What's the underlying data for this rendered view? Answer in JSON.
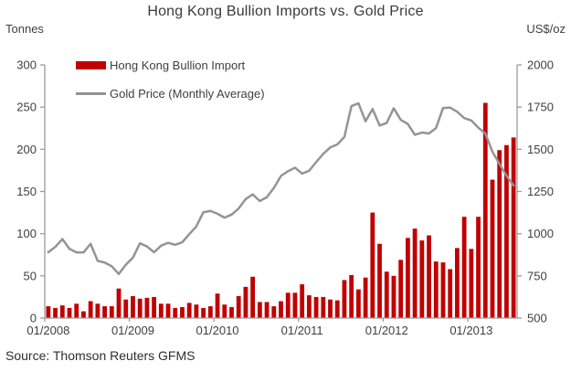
{
  "title": "Hong Kong Bullion Imports vs. Gold Price",
  "source": "Source: Thomson Reuters GFMS",
  "left_axis_unit": "Tonnes",
  "right_axis_unit": "US$/oz",
  "legend": {
    "bar_label": "Hong Kong Bullion Import",
    "line_label": "Gold Price (Monthly Average)"
  },
  "colors": {
    "bar": "#c00000",
    "line": "#949494",
    "axis": "#9c9c9c",
    "text": "#3f3f3f"
  },
  "chart_data": {
    "type": "bar",
    "subtype": "combo bar+line, dual axis",
    "title": "Hong Kong Bullion Imports vs. Gold Price",
    "gridlines": false,
    "legend_position": "top-left inside plot",
    "months": [
      "01/2008",
      "02/2008",
      "03/2008",
      "04/2008",
      "05/2008",
      "06/2008",
      "07/2008",
      "08/2008",
      "09/2008",
      "10/2008",
      "11/2008",
      "12/2008",
      "01/2009",
      "02/2009",
      "03/2009",
      "04/2009",
      "05/2009",
      "06/2009",
      "07/2009",
      "08/2009",
      "09/2009",
      "10/2009",
      "11/2009",
      "12/2009",
      "01/2010",
      "02/2010",
      "03/2010",
      "04/2010",
      "05/2010",
      "06/2010",
      "07/2010",
      "08/2010",
      "09/2010",
      "10/2010",
      "11/2010",
      "12/2010",
      "01/2011",
      "02/2011",
      "03/2011",
      "04/2011",
      "05/2011",
      "06/2011",
      "07/2011",
      "08/2011",
      "09/2011",
      "10/2011",
      "11/2011",
      "12/2011",
      "01/2012",
      "02/2012",
      "03/2012",
      "04/2012",
      "05/2012",
      "06/2012",
      "07/2012",
      "08/2012",
      "09/2012",
      "10/2012",
      "11/2012",
      "12/2012",
      "01/2013",
      "02/2013",
      "03/2013",
      "04/2013",
      "05/2013",
      "06/2013",
      "07/2013"
    ],
    "series": [
      {
        "name": "Hong Kong Bullion Import",
        "type": "bar",
        "axis": "left",
        "unit": "tonnes",
        "color": "#c00000",
        "values": [
          14,
          12,
          15,
          12,
          17,
          8,
          20,
          17,
          14,
          14,
          35,
          22,
          26,
          23,
          24,
          25,
          17,
          17,
          12,
          13,
          18,
          16,
          12,
          14,
          29,
          16,
          13,
          26,
          37,
          49,
          19,
          19,
          14,
          20,
          30,
          30,
          40,
          27,
          25,
          25,
          22,
          21,
          45,
          51,
          34,
          48,
          125,
          88,
          55,
          50,
          69,
          95,
          106,
          92,
          98,
          67,
          66,
          58,
          83,
          120,
          82,
          120,
          255,
          164,
          199,
          205,
          214
        ]
      },
      {
        "name": "Gold Price (Monthly Average)",
        "type": "line",
        "axis": "right",
        "unit": "US$/oz",
        "color": "#949494",
        "values": [
          890,
          922,
          968,
          910,
          889,
          889,
          940,
          839,
          829,
          807,
          761,
          816,
          858,
          943,
          924,
          890,
          929,
          946,
          934,
          949,
          997,
          1043,
          1127,
          1135,
          1118,
          1095,
          1113,
          1149,
          1205,
          1233,
          1193,
          1216,
          1271,
          1342,
          1370,
          1391,
          1356,
          1373,
          1424,
          1473,
          1511,
          1529,
          1573,
          1756,
          1772,
          1666,
          1739,
          1641,
          1656,
          1743,
          1674,
          1650,
          1586,
          1599,
          1594,
          1626,
          1745,
          1747,
          1722,
          1685,
          1671,
          1628,
          1593,
          1485,
          1414,
          1343,
          1285
        ]
      }
    ],
    "left_axis": {
      "label": "Tonnes",
      "min": 0,
      "max": 300,
      "step": 50,
      "ticks": [
        "0",
        "50",
        "100",
        "150",
        "200",
        "250",
        "300"
      ]
    },
    "right_axis": {
      "label": "US$/oz",
      "min": 500,
      "max": 2000,
      "step": 250,
      "ticks": [
        "500",
        "750",
        "1000",
        "1250",
        "1500",
        "1750",
        "2000"
      ]
    },
    "x_ticks": {
      "labels": [
        "01/2008",
        "01/2009",
        "01/2010",
        "01/2011",
        "01/2012",
        "01/2013"
      ],
      "month_indices": [
        0,
        12,
        24,
        36,
        48,
        60
      ]
    }
  }
}
